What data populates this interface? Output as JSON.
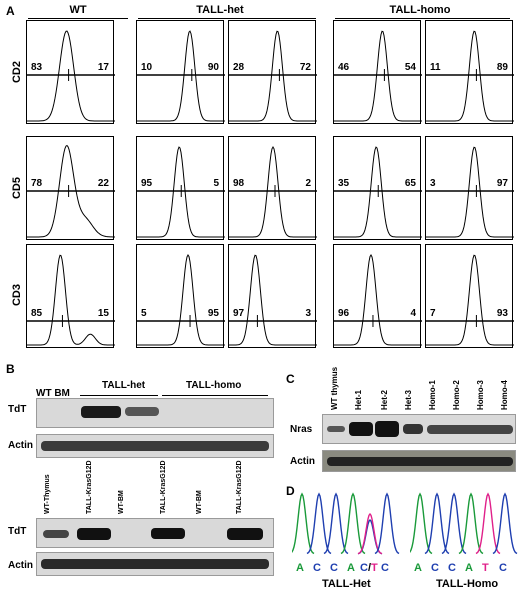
{
  "panel_a": {
    "label": "A",
    "groups": [
      {
        "name": "WT"
      },
      {
        "name": "TALL-het"
      },
      {
        "name": "TALL-homo"
      }
    ],
    "rows": [
      "CD2",
      "CD5",
      "CD3"
    ],
    "percentages": [
      [
        [
          "83",
          "17"
        ],
        [
          "10",
          "90"
        ],
        [
          "28",
          "72"
        ],
        [
          "46",
          "54"
        ],
        [
          "11",
          "89"
        ]
      ],
      [
        [
          "78",
          "22"
        ],
        [
          "95",
          "5"
        ],
        [
          "98",
          "2"
        ],
        [
          "35",
          "65"
        ],
        [
          "3",
          "97"
        ]
      ],
      [
        [
          "85",
          "15"
        ],
        [
          "5",
          "95"
        ],
        [
          "97",
          "3"
        ],
        [
          "96",
          "4"
        ],
        [
          "7",
          "93"
        ]
      ]
    ]
  },
  "panel_b": {
    "label": "B",
    "top": {
      "lanes": [
        "WT BM",
        "TALL-het",
        "TALL-homo"
      ],
      "rows": [
        "TdT",
        "Actin"
      ]
    },
    "bottom": {
      "lanes": [
        "WT-Thymus",
        "TALL-KrasG12D",
        "WT-BM",
        "TALL-KrasG12D",
        "WT-BM",
        "TALL-KrasG12D"
      ],
      "rows": [
        "TdT",
        "Actin"
      ]
    }
  },
  "panel_c": {
    "label": "C",
    "lanes": [
      "WT thymus",
      "Het-1",
      "Het-2",
      "Het-3",
      "Homo-1",
      "Homo-2",
      "Homo-3",
      "Homo-4"
    ],
    "rows": [
      "Nras",
      "Actin"
    ]
  },
  "panel_d": {
    "label": "D",
    "het": {
      "bases": [
        "A",
        "C",
        "C",
        "A",
        "C/T",
        "C"
      ],
      "caption": "TALL-Het"
    },
    "homo": {
      "bases": [
        "A",
        "C",
        "C",
        "A",
        "T",
        "C"
      ],
      "caption": "TALL-Homo"
    },
    "colors": {
      "A": "#1a9a3a",
      "C": "#1f3fb0",
      "T": "#e0208a"
    }
  }
}
